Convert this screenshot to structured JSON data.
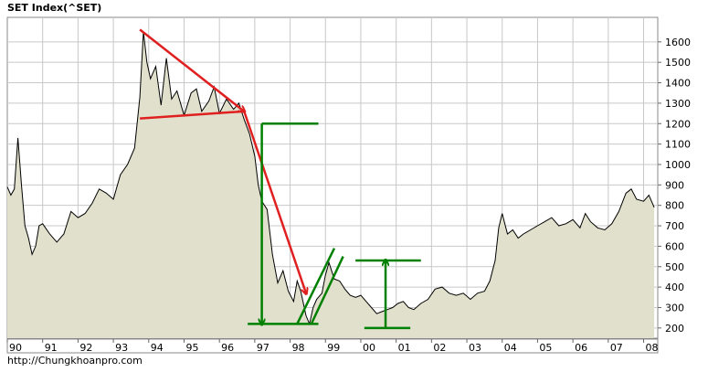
{
  "header": {
    "title": "SET Index(^SET)"
  },
  "footer": {
    "source": "http://Chungkhoanpro.com"
  },
  "chart_data": {
    "type": "area",
    "title": "SET Index(^SET)",
    "xlabel": "",
    "ylabel": "",
    "x_tick_labels": [
      "90",
      "91",
      "92",
      "93",
      "94",
      "95",
      "96",
      "97",
      "98",
      "99",
      "00",
      "01",
      "02",
      "03",
      "04",
      "05",
      "06",
      "07",
      "08"
    ],
    "y_ticks": [
      200,
      300,
      400,
      500,
      600,
      700,
      800,
      900,
      1000,
      1100,
      1200,
      1300,
      1400,
      1500,
      1600
    ],
    "xlim": [
      1990.0,
      2008.4
    ],
    "ylim": [
      150,
      1720
    ],
    "grid": true,
    "colors": {
      "area_fill": "#e0e0cc",
      "line": "#000000",
      "grid": "#c8c8c8",
      "annotation_red": "#e02020",
      "annotation_green": "#008000",
      "plot_bg": "#ffffff"
    },
    "series": [
      {
        "x": [
          1990.0,
          1990.1,
          1990.2,
          1990.3,
          1990.4,
          1990.5,
          1990.6,
          1990.7,
          1990.8,
          1990.9,
          1991.0,
          1991.2,
          1991.4,
          1991.6,
          1991.8,
          1992.0,
          1992.2,
          1992.4,
          1992.6,
          1992.8,
          1993.0,
          1993.2,
          1993.4,
          1993.6,
          1993.75,
          1993.85,
          1993.95,
          1994.05,
          1994.2,
          1994.35,
          1994.5,
          1994.65,
          1994.8,
          1995.0,
          1995.2,
          1995.35,
          1995.5,
          1995.7,
          1995.85,
          1996.0,
          1996.2,
          1996.4,
          1996.55,
          1996.7,
          1996.85,
          1997.0,
          1997.1,
          1997.2,
          1997.35,
          1997.5,
          1997.65,
          1997.8,
          1997.95,
          1998.1,
          1998.2,
          1998.3,
          1998.45,
          1998.55,
          1998.65,
          1998.75,
          1998.9,
          1999.0,
          1999.1,
          1999.25,
          1999.4,
          1999.55,
          1999.7,
          1999.85,
          2000.0,
          2000.15,
          2000.3,
          2000.45,
          2000.6,
          2000.75,
          2000.9,
          2001.05,
          2001.2,
          2001.35,
          2001.5,
          2001.7,
          2001.9,
          2002.1,
          2002.3,
          2002.5,
          2002.7,
          2002.9,
          2003.1,
          2003.3,
          2003.5,
          2003.65,
          2003.8,
          2003.9,
          2004.0,
          2004.15,
          2004.3,
          2004.45,
          2004.6,
          2004.8,
          2005.0,
          2005.2,
          2005.4,
          2005.6,
          2005.8,
          2006.0,
          2006.2,
          2006.35,
          2006.5,
          2006.7,
          2006.9,
          2007.1,
          2007.3,
          2007.5,
          2007.65,
          2007.8,
          2008.0,
          2008.15,
          2008.3
        ],
        "values": [
          890,
          850,
          880,
          1130,
          900,
          700,
          640,
          560,
          600,
          700,
          710,
          660,
          620,
          660,
          770,
          740,
          760,
          810,
          880,
          860,
          830,
          950,
          1000,
          1080,
          1330,
          1650,
          1500,
          1420,
          1480,
          1290,
          1520,
          1320,
          1360,
          1240,
          1350,
          1370,
          1260,
          1310,
          1380,
          1250,
          1320,
          1270,
          1300,
          1220,
          1150,
          1040,
          900,
          820,
          780,
          560,
          420,
          480,
          380,
          330,
          430,
          380,
          260,
          220,
          300,
          340,
          370,
          460,
          520,
          440,
          430,
          390,
          360,
          350,
          360,
          330,
          300,
          270,
          280,
          290,
          300,
          320,
          330,
          300,
          290,
          320,
          340,
          390,
          400,
          370,
          360,
          370,
          340,
          370,
          380,
          430,
          530,
          690,
          760,
          660,
          680,
          640,
          660,
          680,
          700,
          720,
          740,
          700,
          710,
          730,
          690,
          760,
          720,
          690,
          680,
          710,
          770,
          860,
          880,
          830,
          820,
          850,
          790
        ]
      }
    ],
    "annotations": {
      "red_lines": [
        {
          "from": [
            1993.75,
            1660
          ],
          "to": [
            1996.7,
            1260
          ]
        },
        {
          "from": [
            1993.75,
            1225
          ],
          "to": [
            1996.7,
            1260
          ]
        },
        {
          "from": [
            1996.7,
            1260
          ],
          "to": [
            1998.45,
            370
          ]
        }
      ],
      "green_lines": [
        {
          "from": [
            1997.2,
            1200
          ],
          "to": [
            1998.8,
            1200
          ]
        },
        {
          "from": [
            1997.2,
            1200
          ],
          "to": [
            1997.2,
            220
          ]
        },
        {
          "from": [
            1996.8,
            220
          ],
          "to": [
            1998.8,
            220
          ]
        },
        {
          "from": [
            1998.2,
            220
          ],
          "to": [
            1999.25,
            590
          ]
        },
        {
          "from": [
            1998.6,
            220
          ],
          "to": [
            1999.5,
            550
          ]
        },
        {
          "from": [
            1999.85,
            530
          ],
          "to": [
            2001.7,
            530
          ]
        },
        {
          "from": [
            2000.7,
            530
          ],
          "to": [
            2000.7,
            200
          ]
        },
        {
          "from": [
            2000.1,
            200
          ],
          "to": [
            2001.4,
            200
          ]
        }
      ]
    }
  }
}
